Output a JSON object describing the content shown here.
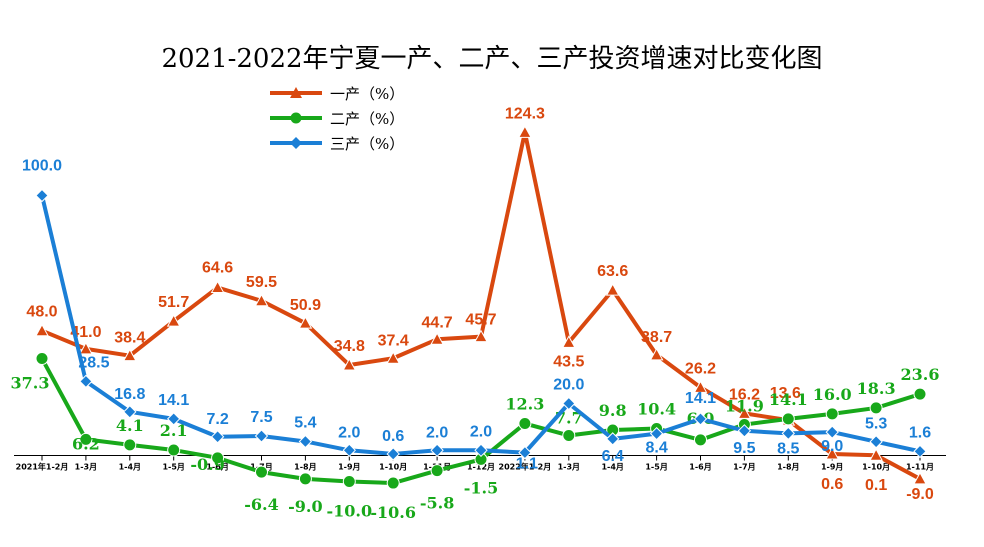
{
  "chart_data": {
    "type": "line",
    "title": "2021-2022年宁夏一产、二产、三产投资增速对比变化图",
    "categories": [
      "2021年1-2月",
      "1-3月",
      "1-4月",
      "1-5月",
      "1-6月",
      "1-7月",
      "1-8月",
      "1-9月",
      "1-10月",
      "1-11月",
      "1-12月",
      "2022年1-2月",
      "1-3月",
      "1-4月",
      "1-5月",
      "1-6月",
      "1-7月",
      "1-8月",
      "1-9月",
      "1-10月",
      "1-11月"
    ],
    "series": [
      {
        "name": "一产（%）",
        "color": "#d9480f",
        "marker": "triangle",
        "values": [
          48.0,
          41.0,
          38.4,
          51.7,
          64.6,
          59.5,
          50.9,
          34.8,
          37.4,
          44.7,
          45.7,
          124.3,
          43.5,
          63.6,
          38.7,
          26.2,
          16.2,
          13.6,
          0.6,
          0.1,
          -9.0
        ],
        "labels": [
          "48.0",
          "41.0",
          "38.4",
          "51.7",
          "64.6",
          "59.5",
          "50.9",
          "34.8",
          "37.4",
          "44.7",
          "45.7",
          "124.3",
          "43.5",
          "63.6",
          "38.7",
          "26.2",
          "16.2",
          "13.6",
          "0.6",
          "0.1",
          "-9.0"
        ]
      },
      {
        "name": "二产（%）",
        "color": "#18a81a",
        "marker": "circle",
        "values": [
          37.3,
          6.2,
          4.1,
          2.1,
          -0.9,
          -6.4,
          -9.0,
          -10.0,
          -10.6,
          -5.8,
          -1.5,
          12.3,
          7.7,
          9.8,
          10.4,
          6.0,
          11.9,
          14.1,
          16.0,
          18.3,
          23.6
        ],
        "labels": [
          "37.3",
          "6.2",
          "4.1",
          "2.1",
          "-0.9",
          "-6.4",
          "-9.0",
          "-10.0",
          "-10.6",
          "-5.8",
          "-1.5",
          "12.3",
          "7.7",
          "9.8",
          "10.4",
          "6.0",
          "11.9",
          "14.1",
          "16.0",
          "18.3",
          "23.6"
        ]
      },
      {
        "name": "三产（%）",
        "color": "#1b7fd6",
        "marker": "diamond",
        "values": [
          100.0,
          28.5,
          16.8,
          14.1,
          7.2,
          7.5,
          5.4,
          2.0,
          0.6,
          2.0,
          2.0,
          1.1,
          20.0,
          6.4,
          8.4,
          14.1,
          9.5,
          8.5,
          9.0,
          5.3,
          1.6
        ],
        "labels": [
          "100.0",
          "28.5",
          "16.8",
          "14.1",
          "7.2",
          "7.5",
          "5.4",
          "2.0",
          "0.6",
          "2.0",
          "2.0",
          "1.1",
          "20.0",
          "6.4",
          "8.4",
          "14.1",
          "9.5",
          "8.5",
          "9.0",
          "5.3",
          "1.6"
        ]
      }
    ],
    "ylim": [
      -20,
      135
    ],
    "grid": false,
    "legend_position": "top-left"
  }
}
